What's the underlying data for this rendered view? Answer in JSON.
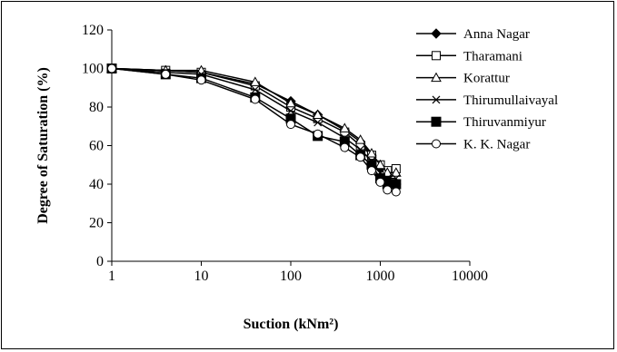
{
  "chart_data": {
    "type": "scatter",
    "xlabel": "Suction (kNm²)",
    "ylabel": "Degree of Saturation (%)",
    "x_scale": "log",
    "xlim": [
      1,
      10000
    ],
    "ylim": [
      0,
      120
    ],
    "x_ticks": [
      1,
      10,
      100,
      1000,
      10000
    ],
    "x_tick_labels": [
      "1",
      "10",
      "100",
      "1000",
      "10000"
    ],
    "y_ticks": [
      0,
      20,
      40,
      60,
      80,
      100,
      120
    ],
    "y_tick_labels": [
      "0",
      "20",
      "40",
      "60",
      "80",
      "100",
      "120"
    ],
    "grid": false,
    "legend_position": "right",
    "series": [
      {
        "name": "Anna Nagar",
        "marker": "diamond-filled",
        "x": [
          1,
          4,
          10,
          40,
          100,
          200,
          400,
          600,
          800,
          1000,
          1200,
          1500
        ],
        "y": [
          100,
          99,
          98,
          92,
          83,
          76,
          68,
          62,
          55,
          48,
          44,
          40
        ]
      },
      {
        "name": "Tharamani",
        "marker": "square-open",
        "x": [
          1,
          4,
          10,
          40,
          100,
          200,
          400,
          600,
          800,
          1000,
          1200,
          1500
        ],
        "y": [
          100,
          99,
          98,
          91,
          80,
          74,
          67,
          60,
          55,
          50,
          47,
          48
        ]
      },
      {
        "name": "Korattur",
        "marker": "triangle-open",
        "x": [
          1,
          4,
          10,
          40,
          100,
          200,
          400,
          600,
          800,
          1000,
          1200,
          1500
        ],
        "y": [
          100,
          99,
          99,
          93,
          82,
          76,
          69,
          63,
          56,
          50,
          46,
          46
        ]
      },
      {
        "name": "Thirumullaivayal",
        "marker": "x",
        "x": [
          1,
          4,
          10,
          40,
          100,
          200,
          400,
          600,
          800,
          1000,
          1200,
          1500
        ],
        "y": [
          100,
          98,
          97,
          89,
          78,
          72,
          64,
          58,
          52,
          46,
          43,
          43
        ]
      },
      {
        "name": "Thiruvanmiyur",
        "marker": "square-filled",
        "x": [
          1,
          4,
          10,
          40,
          100,
          200,
          400,
          600,
          800,
          1000,
          1200,
          1500
        ],
        "y": [
          100,
          97,
          95,
          85,
          74,
          65,
          62,
          55,
          50,
          43,
          40,
          40
        ]
      },
      {
        "name": "K. K. Nagar",
        "marker": "circle-open",
        "x": [
          1,
          4,
          10,
          40,
          100,
          200,
          400,
          600,
          800,
          1000,
          1200,
          1500
        ],
        "y": [
          100,
          97,
          94,
          84,
          71,
          66,
          59,
          54,
          47,
          41,
          37,
          36
        ]
      }
    ]
  }
}
